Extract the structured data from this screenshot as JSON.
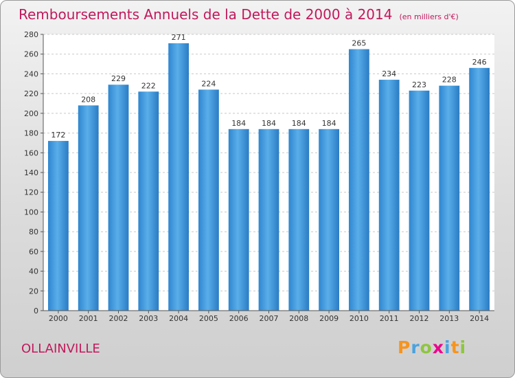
{
  "chart_data": {
    "type": "bar",
    "title": "Remboursements Annuels de la Dette de 2000 à 2014",
    "subtitle": "(en milliers d'€)",
    "categories": [
      "2000",
      "2001",
      "2002",
      "2003",
      "2004",
      "2005",
      "2006",
      "2007",
      "2008",
      "2009",
      "2010",
      "2011",
      "2012",
      "2013",
      "2014"
    ],
    "values": [
      172,
      208,
      229,
      222,
      271,
      224,
      184,
      184,
      184,
      184,
      265,
      234,
      223,
      228,
      246
    ],
    "ylim": [
      0,
      280
    ],
    "yticks": [
      0,
      20,
      40,
      60,
      80,
      100,
      120,
      140,
      160,
      180,
      200,
      220,
      240,
      260,
      280
    ],
    "grid": true,
    "bar_color": "#4a9fe0"
  },
  "footer": {
    "commune": "OLLAINVILLE",
    "logo_text": "Proxiti",
    "logo_colors": [
      "#f7941d",
      "#4aa3df",
      "#8dc63f",
      "#ec008c",
      "#4aa3df",
      "#f7941d",
      "#8dc63f"
    ]
  }
}
